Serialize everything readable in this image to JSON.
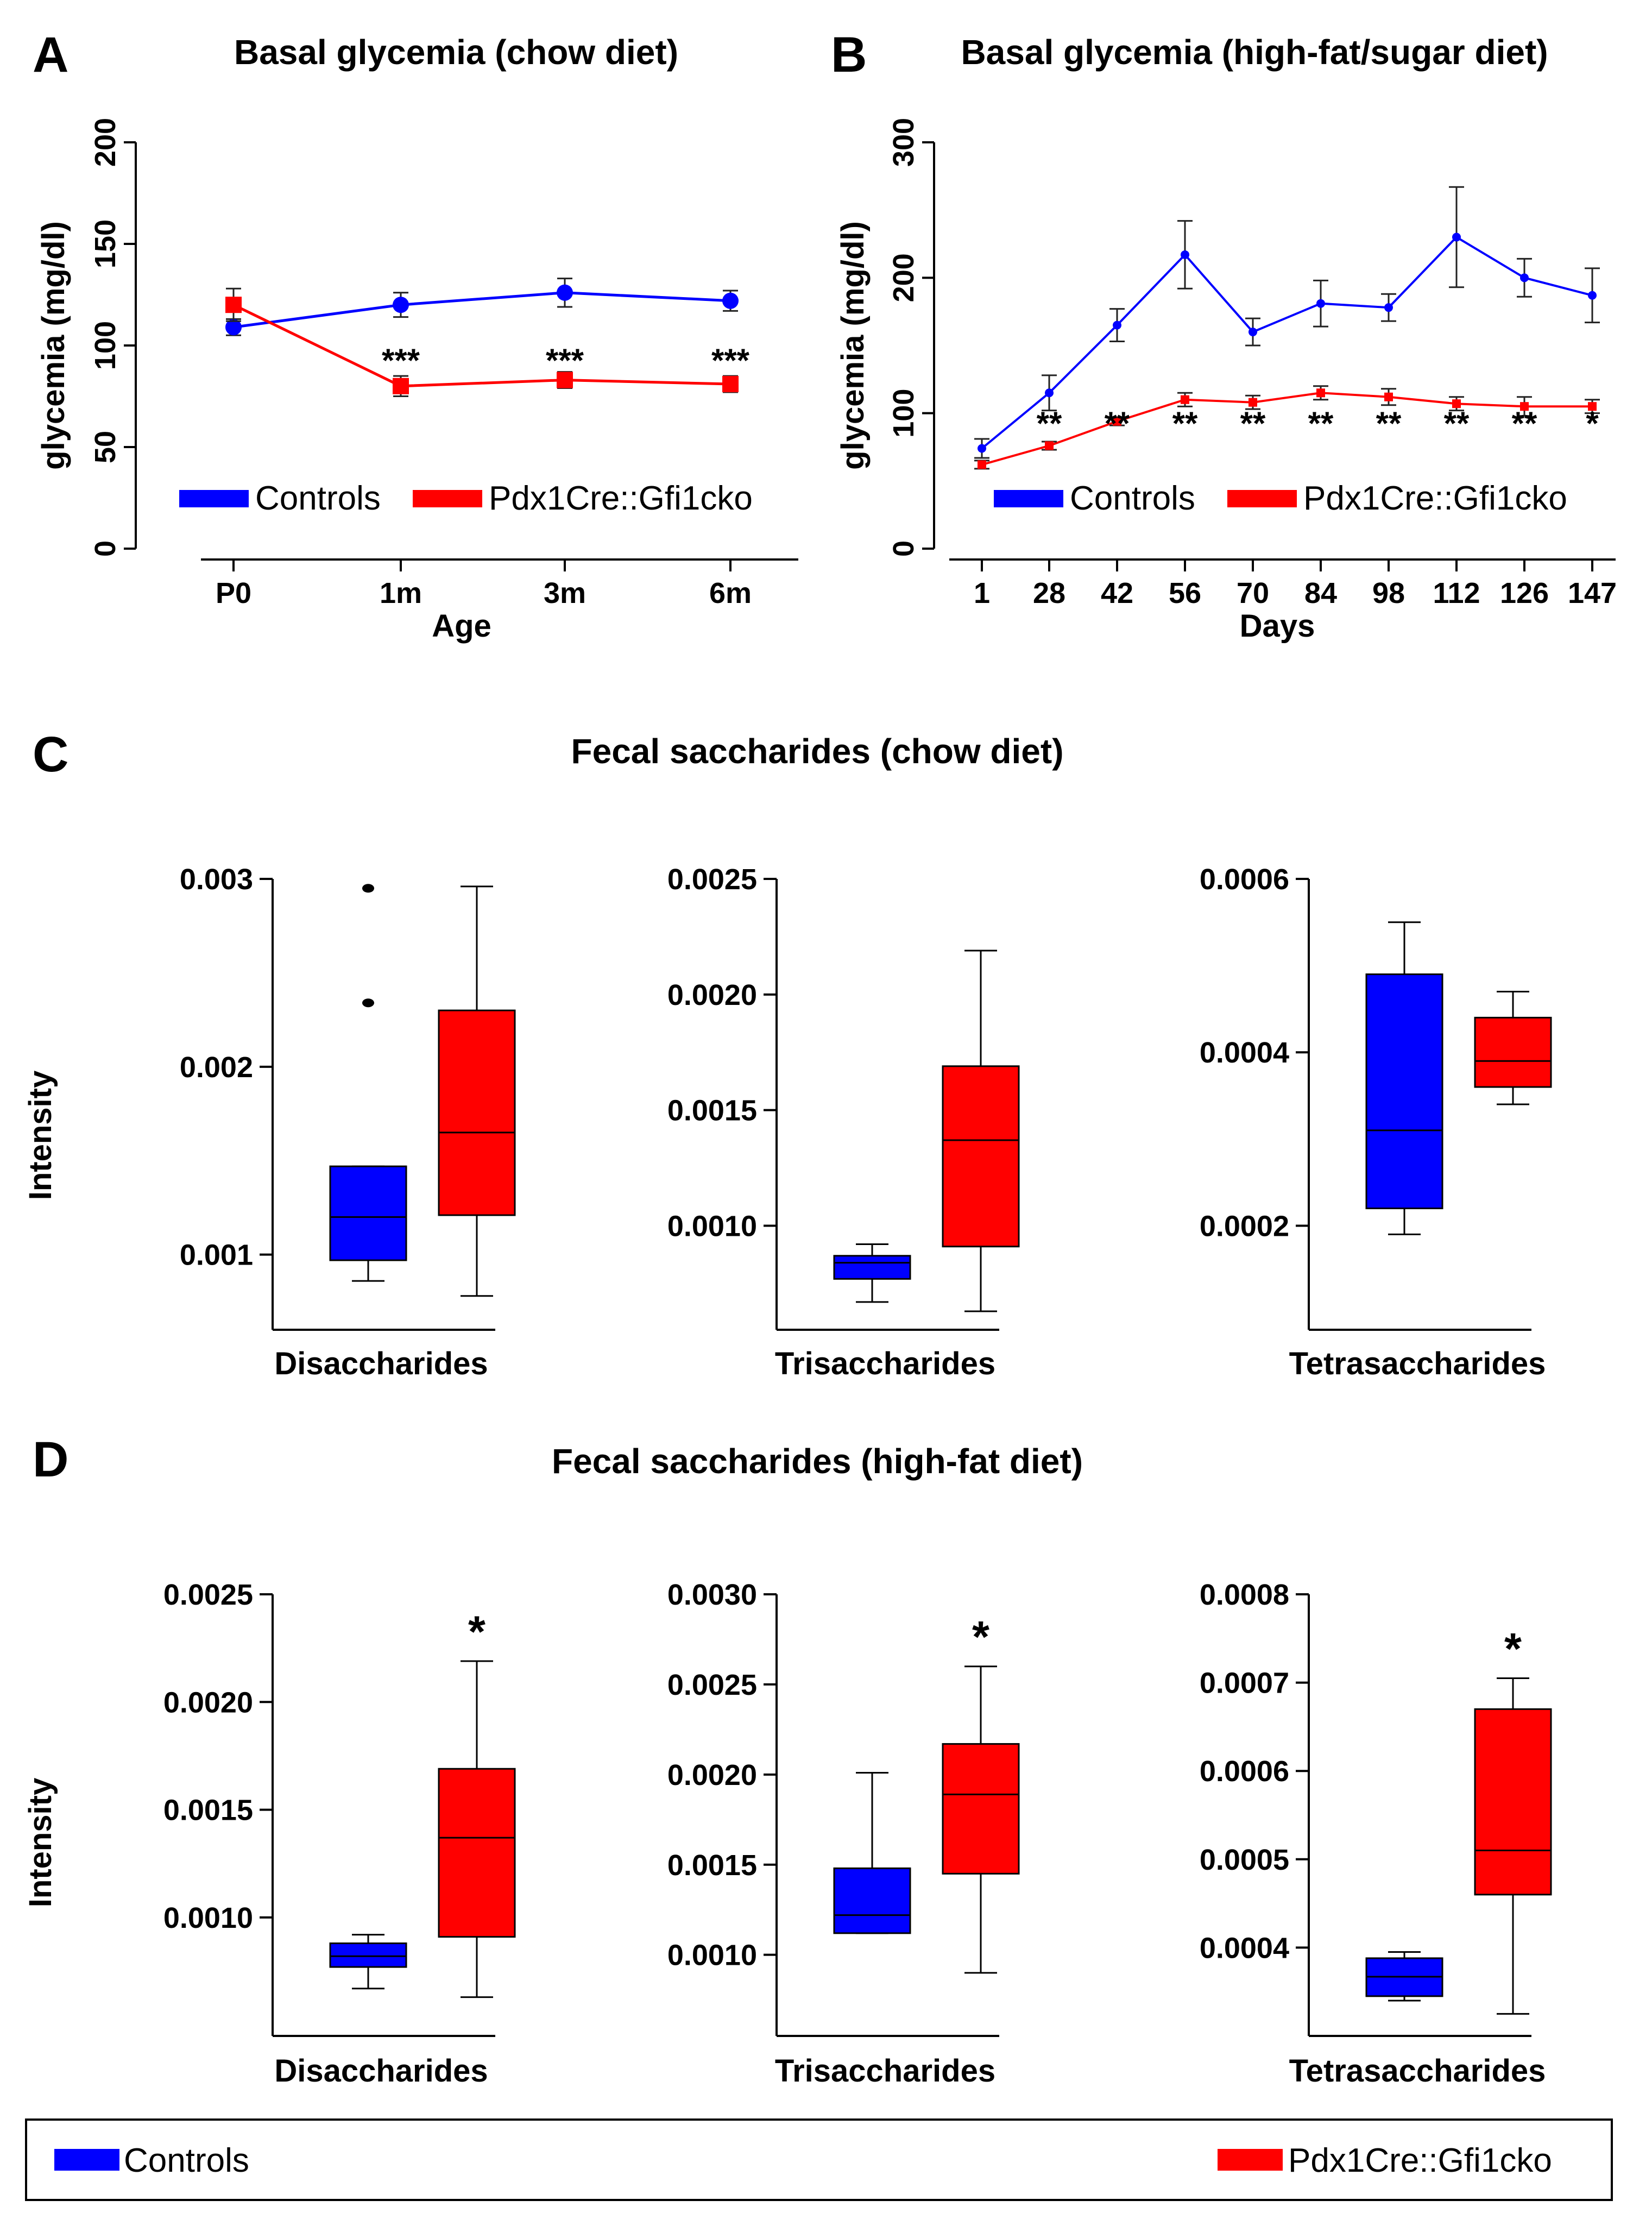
{
  "colors": {
    "controls": "#0000ff",
    "mutant": "#ff0000",
    "axis": "#000000"
  },
  "legend_labels": {
    "controls": "Controls",
    "mutant": "Pdx1Cre::Gfi1cko"
  },
  "chart_data": [
    {
      "panel": "A",
      "type": "line",
      "title": "Basal glycemia (chow diet)",
      "xlabel": "Age",
      "ylabel": "glycemia (mg/dl)",
      "categories": [
        "P0",
        "1m",
        "3m",
        "6m"
      ],
      "ylim": [
        0,
        200
      ],
      "yticks": [
        0,
        50,
        100,
        150,
        200
      ],
      "series": [
        {
          "name": "Controls",
          "values": [
            109,
            120,
            126,
            122
          ],
          "errors": [
            4,
            6,
            7,
            5
          ]
        },
        {
          "name": "Pdx1Cre::Gfi1cko",
          "values": [
            120,
            80,
            83,
            81
          ],
          "errors": [
            8,
            5,
            4,
            4
          ]
        }
      ],
      "annotations": [
        "",
        "***",
        "***",
        "***"
      ],
      "legend": "bottom"
    },
    {
      "panel": "B",
      "type": "line",
      "title": "Basal glycemia (high-fat/sugar diet)",
      "xlabel": "Days",
      "ylabel": "glycemia (mg/dl)",
      "categories": [
        "1",
        "28",
        "42",
        "56",
        "70",
        "84",
        "98",
        "112",
        "126",
        "147"
      ],
      "ylim": [
        0,
        300
      ],
      "yticks": [
        0,
        100,
        200,
        300
      ],
      "series": [
        {
          "name": "Controls",
          "values": [
            74,
            115,
            165,
            217,
            160,
            181,
            178,
            230,
            200,
            187
          ],
          "errors": [
            7,
            13,
            12,
            25,
            10,
            17,
            10,
            37,
            14,
            20
          ]
        },
        {
          "name": "Pdx1Cre::Gfi1cko",
          "values": [
            62,
            76,
            94,
            110,
            108,
            115,
            112,
            107,
            105,
            105
          ],
          "errors": [
            3,
            3,
            3,
            5,
            5,
            5,
            6,
            5,
            7,
            5
          ]
        }
      ],
      "annotations": [
        "",
        "**",
        "**",
        "**",
        "**",
        "**",
        "**",
        "**",
        "**",
        "*"
      ],
      "legend": "bottom"
    },
    {
      "panel": "C",
      "section_title": "Fecal saccharides (chow diet)",
      "type": "box",
      "ylabel": "Intensity",
      "subplots": [
        {
          "xlabel": "Disaccharides",
          "ylim": [
            0.0006,
            0.003
          ],
          "yticks": [
            0.003,
            0.002,
            0.001
          ],
          "yticklabels": [
            "0.003",
            "0.002",
            "0.001"
          ],
          "boxes": [
            {
              "name": "Controls",
              "min": 0.00086,
              "q1": 0.00097,
              "median": 0.0012,
              "q3": 0.00147,
              "max": 0.00147,
              "outliers": [
                0.00234,
                0.00295
              ]
            },
            {
              "name": "Pdx1Cre::Gfi1cko",
              "min": 0.00078,
              "q1": 0.00121,
              "median": 0.00165,
              "q3": 0.0023,
              "max": 0.00296,
              "outliers": []
            }
          ],
          "annotation": ""
        },
        {
          "xlabel": "Trisaccharides",
          "ylim": [
            0.00055,
            0.0025
          ],
          "yticks": [
            0.0025,
            0.002,
            0.0015,
            0.001
          ],
          "yticklabels": [
            "0.0025",
            "0.0020",
            "0.0015",
            "0.0010"
          ],
          "boxes": [
            {
              "name": "Controls",
              "min": 0.00067,
              "q1": 0.00077,
              "median": 0.00084,
              "q3": 0.00087,
              "max": 0.00092,
              "outliers": []
            },
            {
              "name": "Pdx1Cre::Gfi1cko",
              "min": 0.00063,
              "q1": 0.00091,
              "median": 0.00137,
              "q3": 0.00169,
              "max": 0.00219,
              "outliers": []
            }
          ],
          "annotation": ""
        },
        {
          "xlabel": "Tetrasaccharides",
          "ylim": [
            8e-05,
            0.0006
          ],
          "yticks": [
            0.0006,
            0.0004,
            0.0002
          ],
          "yticklabels": [
            "0.0006",
            "0.0004",
            "0.0002"
          ],
          "boxes": [
            {
              "name": "Controls",
              "min": 0.00019,
              "q1": 0.00022,
              "median": 0.00031,
              "q3": 0.00049,
              "max": 0.00055,
              "outliers": []
            },
            {
              "name": "Pdx1Cre::Gfi1cko",
              "min": 0.00034,
              "q1": 0.00036,
              "median": 0.00039,
              "q3": 0.00044,
              "max": 0.00047,
              "outliers": []
            }
          ],
          "annotation": ""
        }
      ]
    },
    {
      "panel": "D",
      "section_title": "Fecal saccharides (high-fat diet)",
      "type": "box",
      "ylabel": "Intensity",
      "subplots": [
        {
          "xlabel": "Disaccharides",
          "ylim": [
            0.00045,
            0.0025
          ],
          "yticks": [
            0.0025,
            0.002,
            0.0015,
            0.001
          ],
          "yticklabels": [
            "0.0025",
            "0.0020",
            "0.0015",
            "0.0010"
          ],
          "boxes": [
            {
              "name": "Controls",
              "min": 0.00067,
              "q1": 0.00077,
              "median": 0.00082,
              "q3": 0.00088,
              "max": 0.00092,
              "outliers": []
            },
            {
              "name": "Pdx1Cre::Gfi1cko",
              "min": 0.00063,
              "q1": 0.00091,
              "median": 0.00137,
              "q3": 0.00169,
              "max": 0.00219,
              "outliers": []
            }
          ],
          "annotation": "*"
        },
        {
          "xlabel": "Trisaccharides",
          "ylim": [
            0.00055,
            0.003
          ],
          "yticks": [
            0.003,
            0.0025,
            0.002,
            0.0015,
            0.001
          ],
          "yticklabels": [
            "0.0030",
            "0.0025",
            "0.0020",
            "0.0015",
            "0.0010"
          ],
          "boxes": [
            {
              "name": "Controls",
              "min": 0.00112,
              "q1": 0.00112,
              "median": 0.00122,
              "q3": 0.00148,
              "max": 0.00201,
              "outliers": []
            },
            {
              "name": "Pdx1Cre::Gfi1cko",
              "min": 0.0009,
              "q1": 0.00145,
              "median": 0.00189,
              "q3": 0.00217,
              "max": 0.0026,
              "outliers": []
            }
          ],
          "annotation": "*"
        },
        {
          "xlabel": "Tetrasaccharides",
          "ylim": [
            0.0003,
            0.0008
          ],
          "yticks": [
            0.0008,
            0.0007,
            0.0006,
            0.0005,
            0.0004
          ],
          "yticklabels": [
            "0.0008",
            "0.0007",
            "0.0006",
            "0.0005",
            "0.0004"
          ],
          "boxes": [
            {
              "name": "Controls",
              "min": 0.00034,
              "q1": 0.000345,
              "median": 0.000367,
              "q3": 0.000388,
              "max": 0.000395,
              "outliers": []
            },
            {
              "name": "Pdx1Cre::Gfi1cko",
              "min": 0.000325,
              "q1": 0.00046,
              "median": 0.00051,
              "q3": 0.00067,
              "max": 0.000705,
              "outliers": []
            }
          ],
          "annotation": "*"
        }
      ]
    }
  ]
}
